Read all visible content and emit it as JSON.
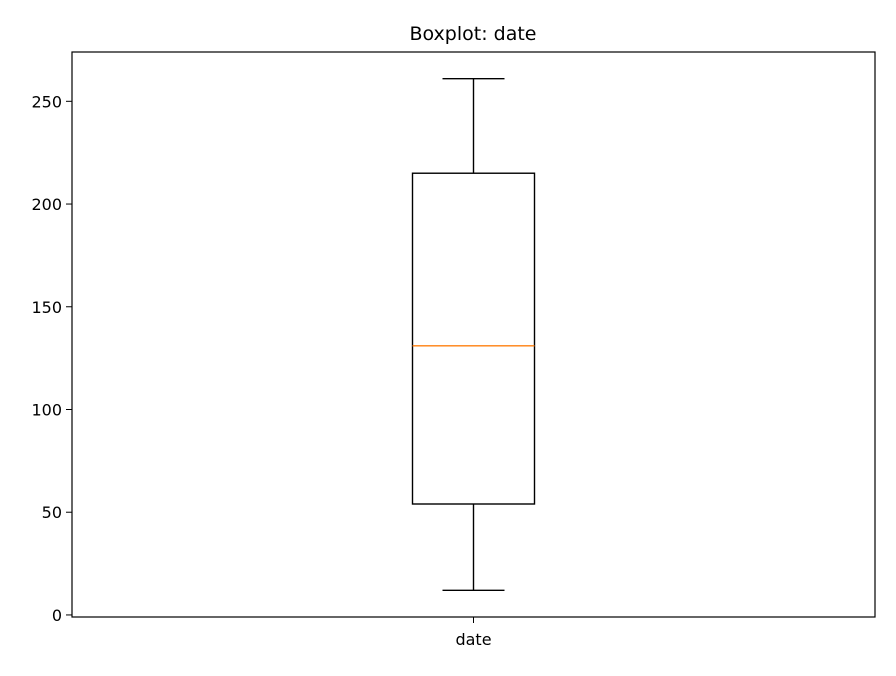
{
  "chart_data": {
    "type": "boxplot",
    "title": "Boxplot: date",
    "xlabel": "",
    "ylabel": "",
    "categories": [
      "date"
    ],
    "boxes": [
      {
        "category": "date",
        "whisker_low": 12,
        "q1": 54,
        "median": 131,
        "q3": 215,
        "whisker_high": 261
      }
    ],
    "ylim": [
      -1,
      274
    ],
    "y_ticks": [
      0,
      50,
      100,
      150,
      200,
      250
    ],
    "grid": false,
    "colors": {
      "box": "#000000",
      "median": "#ff7f0e",
      "axes": "#000000"
    }
  }
}
